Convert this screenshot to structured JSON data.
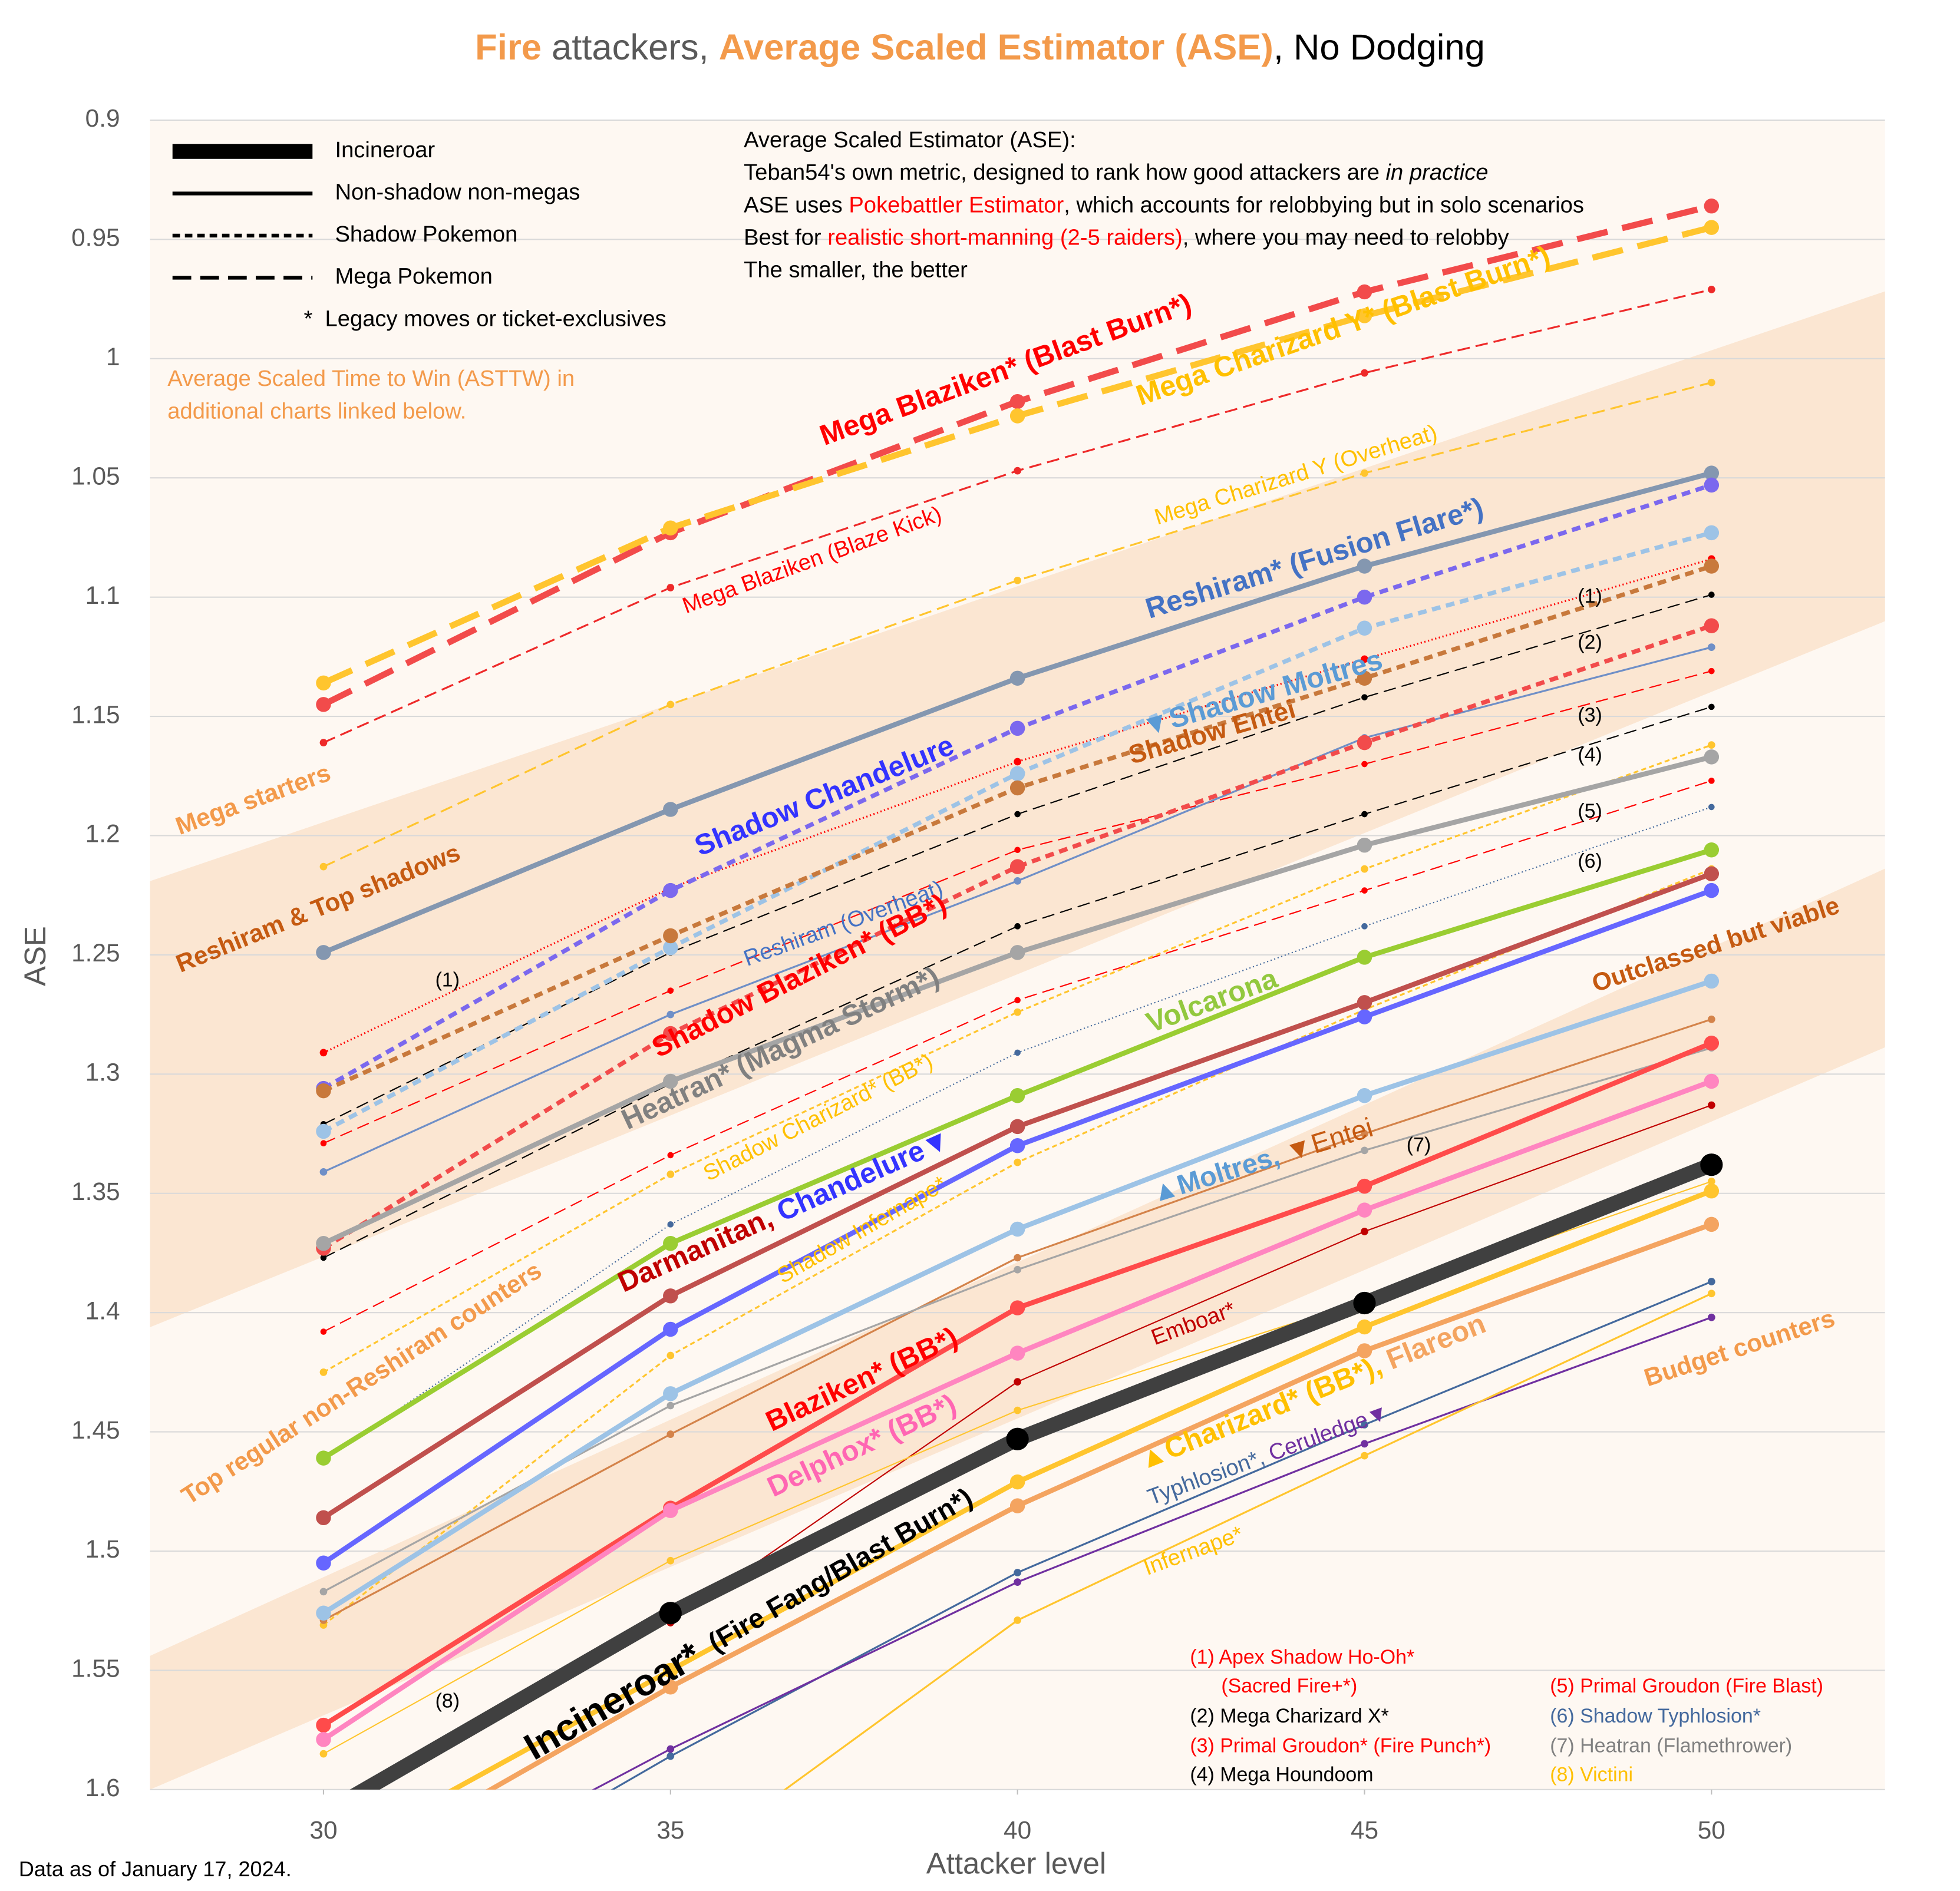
{
  "chart_data": {
    "type": "line",
    "title": {
      "parts": [
        {
          "text": "Fire",
          "color": "#f39a4b",
          "bold": true
        },
        {
          "text": " attackers, ",
          "color": "#595959"
        },
        {
          "text": "Average Scaled Estimator (ASE)",
          "color": "#f39a4b",
          "bold": true
        },
        {
          "text": ", No Dodging",
          "color": "#000000"
        }
      ]
    },
    "x_label": "Attacker level",
    "y_label": "ASE",
    "x": [
      30,
      35,
      40,
      45,
      50
    ],
    "xlim": [
      27.5,
      52.5
    ],
    "xticks": [
      30,
      35,
      40,
      45,
      50
    ],
    "ylim": [
      0.9,
      1.6
    ],
    "y_reversed": true,
    "yticks": [
      0.9,
      0.95,
      1,
      1.05,
      1.1,
      1.15,
      1.2,
      1.25,
      1.3,
      1.35,
      1.4,
      1.45,
      1.5,
      1.55,
      1.6
    ],
    "grid": true,
    "series": [
      {
        "color": "#ee2a2a",
        "width": 1.5,
        "dash": "longdash",
        "marker": 3,
        "values": [
          1.161,
          1.096,
          1.047,
          1.006,
          0.971
        ]
      },
      {
        "color": "#ffc52e",
        "width": 1.5,
        "dash": "longdash",
        "marker": 3,
        "values": [
          1.213,
          1.145,
          1.093,
          1.048,
          1.01
        ]
      },
      {
        "color": "#ff0000",
        "width": 1.5,
        "dash": "dot",
        "marker": 3,
        "values": [
          1.291,
          1.222,
          1.169,
          1.126,
          1.084
        ]
      },
      {
        "color": "#000000",
        "width": 1,
        "dash": "longdash",
        "marker": 2.5,
        "values": [
          1.321,
          1.249,
          1.191,
          1.142,
          1.099
        ]
      },
      {
        "color": "#ff0000",
        "width": 1,
        "dash": "longdash",
        "marker": 2.5,
        "values": [
          1.329,
          1.265,
          1.206,
          1.17,
          1.131
        ]
      },
      {
        "color": "#6f8fc7",
        "width": 1.5,
        "dash": "solid",
        "marker": 3,
        "values": [
          1.341,
          1.275,
          1.219,
          1.159,
          1.121
        ]
      },
      {
        "color": "#000000",
        "width": 1,
        "dash": "longdash",
        "marker": 2.5,
        "values": [
          1.377,
          1.304,
          1.238,
          1.191,
          1.146
        ]
      },
      {
        "color": "#ff0000",
        "width": 1,
        "dash": "longdash",
        "marker": 2.5,
        "values": [
          1.408,
          1.334,
          1.269,
          1.223,
          1.177
        ]
      },
      {
        "color": "#44699d",
        "width": 1,
        "dash": "dot",
        "marker": 2.5,
        "values": [
          1.462,
          1.363,
          1.291,
          1.238,
          1.188
        ]
      },
      {
        "color": "#ffc52e",
        "width": 1.5,
        "dash": "shortdash",
        "marker": 3,
        "values": [
          1.425,
          1.342,
          1.274,
          1.214,
          1.162
        ]
      },
      {
        "color": "#ffc52e",
        "width": 1.5,
        "dash": "shortdash",
        "marker": 3,
        "values": [
          1.531,
          1.418,
          1.337,
          1.273,
          1.214
        ]
      },
      {
        "color": "#d4834a",
        "width": 1.5,
        "dash": "solid",
        "marker": 3,
        "values": [
          1.529,
          1.451,
          1.377,
          1.325,
          1.277
        ]
      },
      {
        "color": "#a5a5a5",
        "width": 1.5,
        "dash": "solid",
        "marker": 3,
        "values": [
          1.517,
          1.439,
          1.382,
          1.332,
          1.289
        ]
      },
      {
        "color": "#c00000",
        "width": 1,
        "dash": "solid",
        "marker": 3,
        "values": [
          null,
          1.53,
          1.429,
          1.366,
          1.313
        ]
      },
      {
        "color": "#ffc52e",
        "width": 1,
        "dash": "solid",
        "marker": 3,
        "values": [
          1.585,
          1.504,
          1.441,
          1.395,
          1.345
        ]
      },
      {
        "color": "#44699d",
        "width": 1.5,
        "dash": "solid",
        "marker": 3,
        "values": [
          1.67,
          1.586,
          1.509,
          1.447,
          1.387
        ]
      },
      {
        "color": "#7030a0",
        "width": 1.5,
        "dash": "solid",
        "marker": 3,
        "values": [
          1.66,
          1.583,
          1.513,
          1.455,
          1.402
        ]
      },
      {
        "color": "#ffc52e",
        "width": 1.5,
        "dash": "solid",
        "marker": 3,
        "values": [
          null,
          1.635,
          1.529,
          1.46,
          1.392
        ]
      },
      {
        "color": "#f24b4b",
        "width": 5,
        "dash": "longdash",
        "marker": 6,
        "values": [
          1.145,
          1.073,
          1.018,
          0.972,
          0.936
        ]
      },
      {
        "color": "#ffc52e",
        "width": 5,
        "dash": "longdash",
        "marker": 6,
        "values": [
          1.136,
          1.071,
          1.024,
          0.982,
          0.945
        ]
      },
      {
        "color": "#8497b0",
        "width": 4,
        "dash": "solid",
        "marker": 6,
        "values": [
          1.249,
          1.189,
          1.134,
          1.087,
          1.048
        ]
      },
      {
        "color": "#7b68ee",
        "width": 3.5,
        "dash": "shortdash",
        "marker": 6,
        "values": [
          1.306,
          1.223,
          1.155,
          1.1,
          1.053
        ]
      },
      {
        "color": "#9dc3e6",
        "width": 3.5,
        "dash": "shortdash",
        "marker": 6,
        "values": [
          1.324,
          1.247,
          1.174,
          1.113,
          1.073
        ]
      },
      {
        "color": "#c8793c",
        "width": 3.5,
        "dash": "shortdash",
        "marker": 6,
        "values": [
          1.307,
          1.242,
          1.18,
          1.134,
          1.087
        ]
      },
      {
        "color": "#f24b4b",
        "width": 3.5,
        "dash": "shortdash",
        "marker": 6,
        "values": [
          1.373,
          1.283,
          1.213,
          1.161,
          1.112
        ]
      },
      {
        "color": "#a5a5a5",
        "width": 4,
        "dash": "solid",
        "marker": 6,
        "values": [
          1.371,
          1.303,
          1.249,
          1.204,
          1.167
        ]
      },
      {
        "color": "#9acd32",
        "width": 4,
        "dash": "solid",
        "marker": 6,
        "values": [
          1.461,
          1.371,
          1.309,
          1.251,
          1.206
        ]
      },
      {
        "color": "#c0504d",
        "width": 4,
        "dash": "solid",
        "marker": 6,
        "values": [
          1.486,
          1.393,
          1.322,
          1.27,
          1.216
        ]
      },
      {
        "color": "#6666ff",
        "width": 4,
        "dash": "solid",
        "marker": 6,
        "values": [
          1.505,
          1.407,
          1.33,
          1.276,
          1.223
        ]
      },
      {
        "color": "#9dc3e6",
        "width": 4,
        "dash": "solid",
        "marker": 6,
        "values": [
          1.526,
          1.434,
          1.365,
          1.309,
          1.261
        ]
      },
      {
        "color": "#ff4b4b",
        "width": 4,
        "dash": "solid",
        "marker": 6,
        "values": [
          1.573,
          1.482,
          1.398,
          1.347,
          1.287
        ]
      },
      {
        "color": "#ff85c0",
        "width": 4,
        "dash": "solid",
        "marker": 6,
        "values": [
          1.579,
          1.483,
          1.417,
          1.357,
          1.303
        ]
      },
      {
        "color": "#ffc52e",
        "width": 4,
        "dash": "solid",
        "marker": 6,
        "values": [
          1.63,
          1.55,
          1.471,
          1.406,
          1.349
        ]
      },
      {
        "color": "#f4a460",
        "width": 4,
        "dash": "solid",
        "marker": 6,
        "values": [
          1.64,
          1.557,
          1.481,
          1.416,
          1.363
        ]
      },
      {
        "color": "#404040",
        "marker_color": "#000000",
        "width": 12,
        "dash": "solid",
        "marker": 9,
        "values": [
          1.61,
          1.526,
          1.453,
          1.396,
          1.338
        ]
      }
    ],
    "legend": [
      {
        "label": "Incineroar",
        "width": 12,
        "dash": "solid"
      },
      {
        "label": "Non-shadow non-megas",
        "width": 3,
        "dash": "solid"
      },
      {
        "label": "Shadow Pokemon",
        "width": 3,
        "dash": "shortdash"
      },
      {
        "label": "Mega Pokemon",
        "width": 3,
        "dash": "longdash"
      }
    ],
    "legend_note": "*  Legacy moves or ticket-exclusives",
    "info": [
      {
        "parts": [
          {
            "text": "Average Scaled Estimator (ASE):"
          }
        ]
      },
      {
        "parts": [
          {
            "text": "Teban54's own metric, designed to rank how good attackers are "
          },
          {
            "text": "in practice",
            "italic": true
          }
        ]
      },
      {
        "parts": [
          {
            "text": "ASE uses "
          },
          {
            "text": "Pokebattler Estimator",
            "color": "#ff0000"
          },
          {
            "text": ", which accounts for relobbying but in solo scenarios"
          }
        ]
      },
      {
        "parts": [
          {
            "text": "Best for "
          },
          {
            "text": "realistic short-manning (2-5 raiders)",
            "color": "#ff0000"
          },
          {
            "text": ", where you may need to relobby"
          }
        ]
      },
      {
        "parts": [
          {
            "text": "The smaller, the better"
          }
        ]
      }
    ],
    "note": [
      "Average Scaled Time to Win (ASTTW) in",
      "additional charts linked below."
    ],
    "source": "Data as of January 17, 2024.",
    "annotations": [
      {
        "parts": [
          {
            "text": "Mega Blaziken* (Blast Burn*)",
            "color": "#ff0000",
            "bold": true
          }
        ]
      },
      {
        "parts": [
          {
            "text": "Mega Charizard Y* (Blast Burn*)",
            "color": "#ffc000",
            "bold": true
          }
        ]
      },
      {
        "parts": [
          {
            "text": "Mega Blaziken (Blaze Kick)",
            "color": "#ff0000"
          }
        ]
      },
      {
        "parts": [
          {
            "text": "Mega Charizard Y (Overheat)",
            "color": "#ffc000"
          }
        ]
      },
      {
        "parts": [
          {
            "text": "Reshiram* (Fusion Flare*)",
            "color": "#4472c4",
            "bold": true
          }
        ]
      },
      {
        "parts": [
          {
            "text": "▼",
            "color": "#5b9bd5"
          },
          {
            "text": "Shadow Moltres",
            "color": "#5b9bd5",
            "bold": true
          }
        ]
      },
      {
        "parts": [
          {
            "text": "Shadow Entei",
            "color": "#c55a11",
            "bold": true
          }
        ]
      },
      {
        "parts": [
          {
            "text": "Shadow Chandelure",
            "color": "#3333ff",
            "bold": true
          }
        ]
      },
      {
        "parts": [
          {
            "text": "Reshiram (Overheat)",
            "color": "#4472c4"
          }
        ]
      },
      {
        "parts": [
          {
            "text": "Shadow Blaziken* (BB*)",
            "color": "#ff0000",
            "bold": true
          }
        ]
      },
      {
        "parts": [
          {
            "text": "Heatran* (Magma Storm*)",
            "color": "#808080",
            "bold": true
          }
        ]
      },
      {
        "parts": [
          {
            "text": "Shadow Charizard* (BB*)",
            "color": "#ffc000"
          }
        ]
      },
      {
        "parts": [
          {
            "text": "Volcarona",
            "color": "#92c83e",
            "bold": true
          }
        ]
      },
      {
        "parts": [
          {
            "text": "Darmanitan, ",
            "color": "#c00000",
            "bold": true
          },
          {
            "text": "Chandelure",
            "color": "#3333ff",
            "bold": true
          },
          {
            "text": "▼",
            "color": "#3333ff"
          }
        ]
      },
      {
        "parts": [
          {
            "text": "Shadow Infernape*",
            "color": "#ffc000"
          }
        ]
      },
      {
        "parts": [
          {
            "text": "▲",
            "color": "#5b9bd5"
          },
          {
            "text": "Moltres, ",
            "color": "#5b9bd5",
            "bold": true
          },
          {
            "text": "▼",
            "color": "#c55a11"
          },
          {
            "text": "Entei",
            "color": "#c55a11"
          }
        ]
      },
      {
        "parts": [
          {
            "text": "Emboar*",
            "color": "#c00000"
          }
        ]
      },
      {
        "parts": [
          {
            "text": "Blaziken* (BB*)",
            "color": "#ff0000",
            "bold": true
          }
        ]
      },
      {
        "parts": [
          {
            "text": "Delphox* (BB*)",
            "color": "#ff66b3",
            "bold": true
          }
        ]
      },
      {
        "parts": [
          {
            "text": "Incineroar*",
            "color": "#000000",
            "bold": true,
            "size": 30
          },
          {
            "text": "  (Fire Fang/Blast Burn*)",
            "color": "#000000",
            "bold": true
          }
        ]
      },
      {
        "parts": [
          {
            "text": "▲Charizard* (BB*), ",
            "color": "#ffc000",
            "bold": true
          },
          {
            "text": "Flareon",
            "color": "#f4a460",
            "bold": true
          }
        ]
      },
      {
        "parts": [
          {
            "text": "Typhlosion*, ",
            "color": "#44699d"
          },
          {
            "text": "Ceruledge",
            "color": "#7030a0"
          },
          {
            "text": "▼",
            "color": "#7030a0"
          }
        ]
      },
      {
        "parts": [
          {
            "text": "Infernape*",
            "color": "#ffc000"
          }
        ]
      },
      {
        "parts": [
          {
            "text": "Mega starters",
            "color": "#f39a4b",
            "bold": true
          }
        ]
      },
      {
        "parts": [
          {
            "text": "Reshiram & Top shadows",
            "color": "#c55a11",
            "bold": true
          }
        ]
      },
      {
        "parts": [
          {
            "text": "Top regular non-Reshiram counters",
            "color": "#f39a4b",
            "bold": true
          }
        ]
      },
      {
        "parts": [
          {
            "text": "Outclassed but viable",
            "color": "#c55a11",
            "bold": true
          }
        ]
      },
      {
        "parts": [
          {
            "text": "Budget counters",
            "color": "#f39a4b",
            "bold": true
          }
        ]
      },
      {
        "parts": [
          {
            "text": "(1)"
          }
        ]
      },
      {
        "parts": [
          {
            "text": "(1)"
          }
        ]
      },
      {
        "parts": [
          {
            "text": "(2)"
          }
        ]
      },
      {
        "parts": [
          {
            "text": "(3)"
          }
        ]
      },
      {
        "parts": [
          {
            "text": "(4)"
          }
        ]
      },
      {
        "parts": [
          {
            "text": "(5)"
          }
        ]
      },
      {
        "parts": [
          {
            "text": "(6)"
          }
        ]
      },
      {
        "parts": [
          {
            "text": "(7)"
          }
        ]
      },
      {
        "parts": [
          {
            "text": "(8)"
          }
        ]
      }
    ],
    "footnotes": [
      {
        "text": "(1) Apex Shadow Ho-Oh*",
        "color": "#ff0000"
      },
      {
        "text": "(Sacred Fire+*)",
        "color": "#ff0000"
      },
      {
        "text": "(2) Mega Charizard X*",
        "color": "#000000"
      },
      {
        "text": "(3) Primal Groudon* (Fire Punch*)",
        "color": "#ff0000"
      },
      {
        "text": "(4) Mega Houndoom",
        "color": "#000000"
      },
      {
        "text": "(5) Primal Groudon (Fire Blast)",
        "color": "#ff0000"
      },
      {
        "text": "(6) Shadow Typhlosion*",
        "color": "#44699d"
      },
      {
        "text": "(7) Heatran (Flamethrower)",
        "color": "#808080"
      },
      {
        "text": "(8) Victini",
        "color": "#ffc000"
      }
    ]
  }
}
